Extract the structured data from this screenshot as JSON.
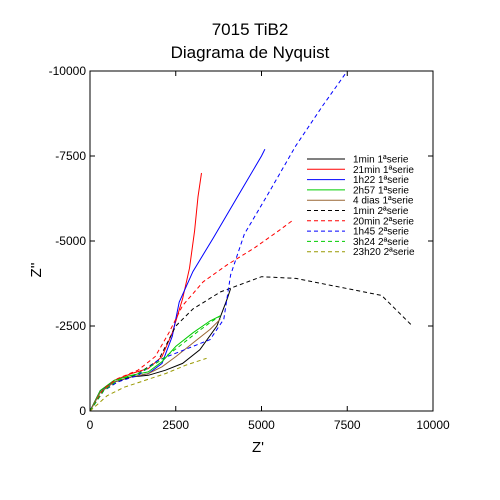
{
  "chart_data": {
    "type": "line",
    "title": "7015 TiB2",
    "subtitle": "Diagrama de Nyquist",
    "xlabel": "Z'",
    "ylabel": "Z''",
    "xlim": [
      0,
      10000
    ],
    "ylim": [
      0,
      -10000
    ],
    "xticks": [
      "0",
      "2500",
      "5000",
      "7500",
      "10000"
    ],
    "yticks": [
      "0",
      "-2500",
      "-5000",
      "-7500",
      "-10000"
    ],
    "legend_position": "right",
    "grid": false,
    "series": [
      {
        "name": "1min 1ªserie",
        "color": "#000000",
        "dash": "solid",
        "points": [
          [
            0,
            0
          ],
          [
            300,
            -550
          ],
          [
            700,
            -850
          ],
          [
            1200,
            -1000
          ],
          [
            1700,
            -1050
          ],
          [
            2200,
            -1200
          ],
          [
            2700,
            -1400
          ],
          [
            3200,
            -1800
          ],
          [
            3700,
            -2500
          ],
          [
            4000,
            -3300
          ],
          [
            4100,
            -3600
          ]
        ]
      },
      {
        "name": "21min 1ªserie",
        "color": "#ff0000",
        "dash": "solid",
        "points": [
          [
            0,
            0
          ],
          [
            300,
            -600
          ],
          [
            700,
            -900
          ],
          [
            1200,
            -1100
          ],
          [
            1700,
            -1250
          ],
          [
            2100,
            -1600
          ],
          [
            2400,
            -2300
          ],
          [
            2700,
            -3300
          ],
          [
            2900,
            -4200
          ],
          [
            3050,
            -5300
          ],
          [
            3150,
            -6300
          ],
          [
            3250,
            -7000
          ]
        ]
      },
      {
        "name": "1h22 1ªserie",
        "color": "#0000ff",
        "dash": "solid",
        "points": [
          [
            0,
            0
          ],
          [
            300,
            -600
          ],
          [
            700,
            -850
          ],
          [
            1200,
            -1000
          ],
          [
            1700,
            -1100
          ],
          [
            2100,
            -1400
          ],
          [
            2400,
            -2200
          ],
          [
            2600,
            -3200
          ],
          [
            3000,
            -4100
          ],
          [
            3600,
            -5100
          ],
          [
            4300,
            -6300
          ],
          [
            5000,
            -7500
          ],
          [
            5100,
            -7700
          ]
        ]
      },
      {
        "name": "2h57 1ªserie",
        "color": "#00cc00",
        "dash": "solid",
        "points": [
          [
            0,
            0
          ],
          [
            300,
            -600
          ],
          [
            700,
            -900
          ],
          [
            1200,
            -1050
          ],
          [
            1700,
            -1150
          ],
          [
            2100,
            -1450
          ],
          [
            2500,
            -1900
          ],
          [
            3000,
            -2300
          ],
          [
            3500,
            -2650
          ],
          [
            3800,
            -2800
          ]
        ]
      },
      {
        "name": "4 dias 1ªserie",
        "color": "#996633",
        "dash": "solid",
        "points": [
          [
            0,
            0
          ],
          [
            300,
            -550
          ],
          [
            700,
            -850
          ],
          [
            1200,
            -1000
          ],
          [
            1700,
            -1100
          ],
          [
            2100,
            -1300
          ],
          [
            2500,
            -1600
          ],
          [
            3000,
            -2000
          ],
          [
            3500,
            -2400
          ],
          [
            3800,
            -2700
          ]
        ]
      },
      {
        "name": "1min 2ªserie",
        "color": "#000000",
        "dash": "dashed",
        "points": [
          [
            0,
            0
          ],
          [
            400,
            -600
          ],
          [
            800,
            -850
          ],
          [
            1400,
            -1100
          ],
          [
            2000,
            -1500
          ],
          [
            2500,
            -2500
          ],
          [
            3000,
            -3000
          ],
          [
            3800,
            -3500
          ],
          [
            5000,
            -3950
          ],
          [
            6000,
            -3900
          ],
          [
            7000,
            -3700
          ],
          [
            8500,
            -3400
          ],
          [
            9400,
            -2500
          ]
        ]
      },
      {
        "name": "20min 2ªserie",
        "color": "#ff0000",
        "dash": "dashed",
        "points": [
          [
            0,
            0
          ],
          [
            400,
            -650
          ],
          [
            800,
            -950
          ],
          [
            1400,
            -1200
          ],
          [
            1900,
            -1600
          ],
          [
            2300,
            -2300
          ],
          [
            2700,
            -3100
          ],
          [
            3300,
            -3800
          ],
          [
            4000,
            -4300
          ],
          [
            4800,
            -4800
          ],
          [
            5500,
            -5300
          ],
          [
            5900,
            -5600
          ]
        ]
      },
      {
        "name": "1h45 2ªserie",
        "color": "#0000ff",
        "dash": "dashed",
        "points": [
          [
            0,
            0
          ],
          [
            400,
            -600
          ],
          [
            800,
            -850
          ],
          [
            1400,
            -1050
          ],
          [
            2000,
            -1500
          ],
          [
            2500,
            -1700
          ],
          [
            3000,
            -1900
          ],
          [
            3500,
            -2100
          ],
          [
            3900,
            -2700
          ],
          [
            4100,
            -4000
          ],
          [
            4500,
            -5200
          ],
          [
            5200,
            -6400
          ],
          [
            6000,
            -7800
          ],
          [
            6800,
            -9000
          ],
          [
            7500,
            -10000
          ]
        ]
      },
      {
        "name": "3h24 2ªserie",
        "color": "#00cc00",
        "dash": "dashed",
        "points": [
          [
            0,
            0
          ],
          [
            400,
            -600
          ],
          [
            800,
            -900
          ],
          [
            1400,
            -1100
          ],
          [
            2000,
            -1450
          ],
          [
            2600,
            -1900
          ],
          [
            3100,
            -2300
          ],
          [
            3500,
            -2600
          ],
          [
            3800,
            -2800
          ]
        ]
      },
      {
        "name": "23h20 2ªserie",
        "color": "#999900",
        "dash": "dashed",
        "points": [
          [
            0,
            0
          ],
          [
            500,
            -450
          ],
          [
            1000,
            -700
          ],
          [
            1600,
            -900
          ],
          [
            2200,
            -1100
          ],
          [
            2800,
            -1350
          ],
          [
            3400,
            -1550
          ]
        ]
      }
    ]
  }
}
